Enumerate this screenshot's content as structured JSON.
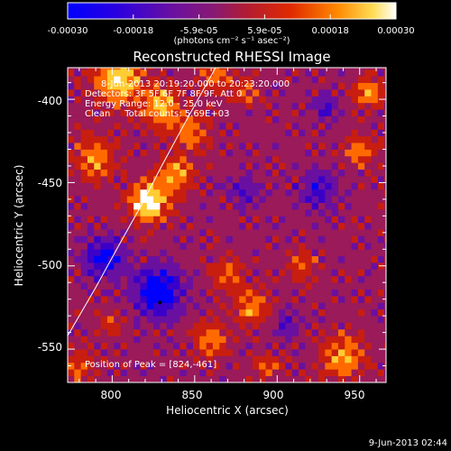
{
  "colorbar": {
    "ticks": [
      "-0.00030",
      "-0.00018",
      "-5.9e-05",
      "5.9e-05",
      "0.00018",
      "0.00030"
    ],
    "unit_label": "(photons cm⁻² s⁻¹ asec⁻²)",
    "colors": [
      "#0000ff",
      "#3a00c8",
      "#6a10a0",
      "#9a1a5a",
      "#c81e10",
      "#ff6a00",
      "#ffcc33",
      "#ffffff"
    ]
  },
  "plot": {
    "title": "Reconstructed RHESSI Image",
    "info_lines": [
      "8-Jun-2013 20:19:20.000 to 20:23:20.000",
      "Detectors: 3F 5F 6F 7F 8F 9F, Att 0",
      "Energy Range: 12.0 - 25.0 keV",
      "Clean     Total counts: 5.69E+03"
    ],
    "peak_text": "Position of Peak = [824,-461]",
    "xlabel": "Heliocentric X (arcsec)",
    "ylabel": "Heliocentric Y (arcsec)",
    "xticks": [
      "800",
      "850",
      "900",
      "950"
    ],
    "yticks": [
      "-400",
      "-450",
      "-500",
      "-550"
    ]
  },
  "footer": {
    "timestamp": "9-Jun-2013 02:44"
  },
  "chart_data": {
    "type": "heatmap",
    "title": "Reconstructed RHESSI Image",
    "xlabel": "Heliocentric X (arcsec)",
    "ylabel": "Heliocentric Y (arcsec)",
    "xlim": [
      773,
      966
    ],
    "ylim": [
      -570,
      -381
    ],
    "zlim": [
      -0.0003,
      0.0003
    ],
    "peak": [
      824,
      -461
    ],
    "limb_curve": {
      "x": [
        773,
        790,
        805,
        818,
        830,
        842,
        852,
        861,
        868
      ],
      "y": [
        -542,
        -513,
        -486,
        -463,
        -440,
        -418,
        -400,
        -384,
        -371
      ]
    }
  }
}
